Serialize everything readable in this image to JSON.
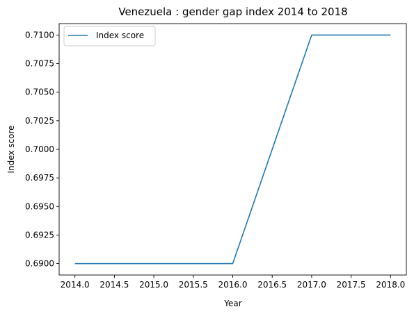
{
  "chart_data": {
    "type": "line",
    "title": "Venezuela : gender gap index 2014 to 2018",
    "xlabel": "Year",
    "ylabel": "Index score",
    "xlim": [
      2013.8,
      2018.2
    ],
    "ylim": [
      0.689,
      0.711
    ],
    "xticks": [
      2014.0,
      2014.5,
      2015.0,
      2015.5,
      2016.0,
      2016.5,
      2017.0,
      2017.5,
      2018.0
    ],
    "xtick_labels": [
      "2014.0",
      "2014.5",
      "2015.0",
      "2015.5",
      "2016.0",
      "2016.5",
      "2017.0",
      "2017.5",
      "2018.0"
    ],
    "yticks": [
      0.69,
      0.6925,
      0.695,
      0.6975,
      0.7,
      0.7025,
      0.705,
      0.7075,
      0.71
    ],
    "ytick_labels": [
      "0.6900",
      "0.6925",
      "0.6950",
      "0.6975",
      "0.7000",
      "0.7025",
      "0.7050",
      "0.7075",
      "0.7100"
    ],
    "grid": false,
    "legend_position": "top-left",
    "series": [
      {
        "name": "Index score",
        "color": "#1f77b4",
        "x": [
          2014,
          2015,
          2016,
          2017,
          2018
        ],
        "y": [
          0.69,
          0.69,
          0.69,
          0.71,
          0.71
        ]
      }
    ]
  }
}
